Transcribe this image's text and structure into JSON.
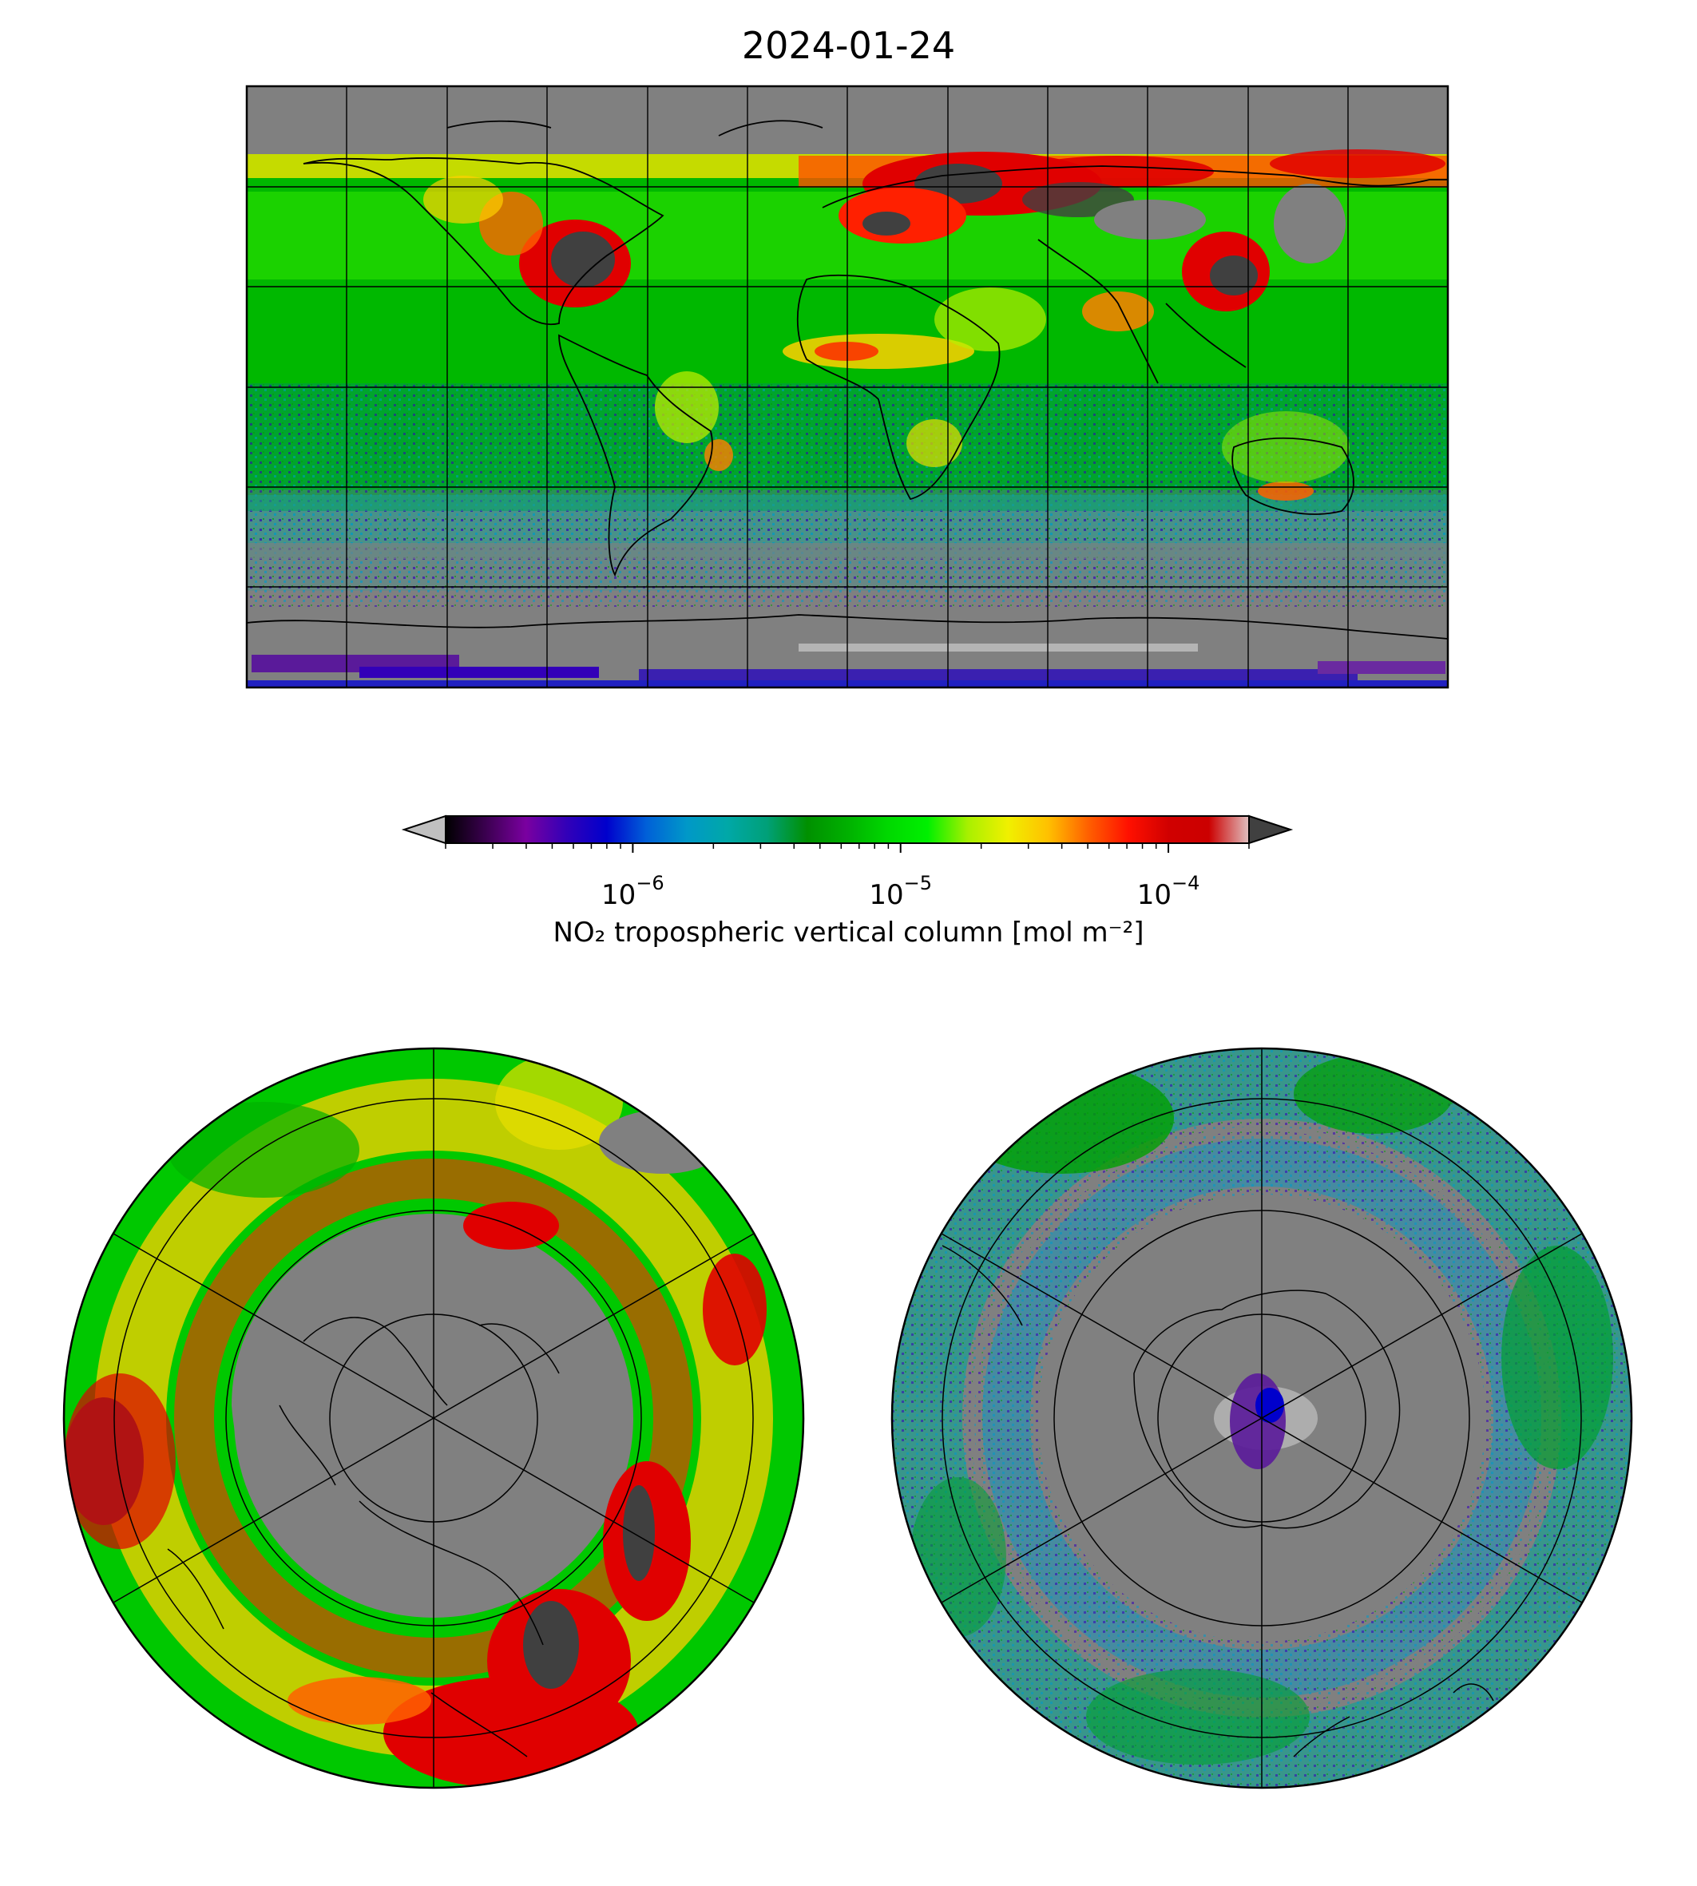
{
  "figure": {
    "title": "2024-01-24"
  },
  "colorbar": {
    "label": "NO₂ tropospheric vertical column [mol m⁻²]",
    "scale": "log",
    "range": [
      2e-07,
      0.0002
    ],
    "ticks": [
      {
        "base": "10",
        "exponent": "−6",
        "value": 1e-06
      },
      {
        "base": "10",
        "exponent": "−5",
        "value": 1e-05
      },
      {
        "base": "10",
        "exponent": "−4",
        "value": 0.0001
      }
    ],
    "extend": "both",
    "under_color": "#c0c0c0",
    "over_color": "#404040",
    "colors": [
      "#000000",
      "#3b0050",
      "#7a00a0",
      "#3300b8",
      "#0000cc",
      "#0060d8",
      "#0098c8",
      "#00a8a8",
      "#00a078",
      "#009000",
      "#00b000",
      "#00d800",
      "#00f000",
      "#a8f000",
      "#f0f000",
      "#ffc000",
      "#ff6000",
      "#ff1000",
      "#d00000",
      "#cc0000",
      "#e0c0c0"
    ]
  },
  "panels": [
    {
      "name": "global-plate-carree-map",
      "projection": "plate-carree",
      "background": "#808080"
    },
    {
      "name": "north-polar-stereographic-map",
      "projection": "north-polar-stereo",
      "background": "#808080"
    },
    {
      "name": "south-polar-stereographic-map",
      "projection": "south-polar-stereo",
      "background": "#808080"
    }
  ]
}
